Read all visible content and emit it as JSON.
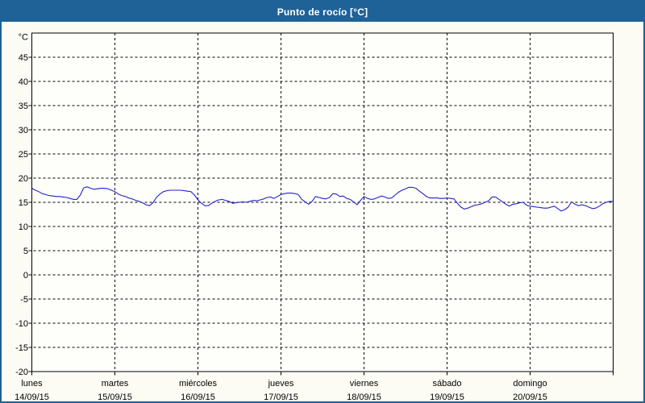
{
  "window": {
    "title": "Punto de rocío [°C]"
  },
  "colors": {
    "titlebar": "#1e6298",
    "window_border": "#1e6298",
    "background": "#fcfcf5",
    "plot_background": "#fefefb",
    "line": "#2222cc",
    "grid": "#000000",
    "text": "#000000"
  },
  "chart_data": {
    "type": "line",
    "title": "Punto de rocío [°C]",
    "legend": false,
    "grid": true,
    "y_axis": {
      "unit_label": "°C",
      "min": -20,
      "max": 50,
      "tick_step": 5,
      "tick_values": [
        45,
        40,
        35,
        30,
        25,
        20,
        15,
        10,
        5,
        0,
        -5,
        -10,
        -15,
        -20
      ],
      "grid_values": [
        45,
        40,
        35,
        30,
        25,
        20,
        15,
        10,
        5,
        0,
        -5,
        -10,
        -15
      ]
    },
    "x_axis": {
      "unit": "hours since lunes 00:00",
      "xlim_hours": [
        0,
        168
      ],
      "step_hours": 1,
      "day_boundary_gridlines": true,
      "days": [
        {
          "name": "lunes",
          "date": "14/09/15"
        },
        {
          "name": "martes",
          "date": "15/09/15"
        },
        {
          "name": "miércoles",
          "date": "16/09/15"
        },
        {
          "name": "jueves",
          "date": "17/09/15"
        },
        {
          "name": "viernes",
          "date": "18/09/15"
        },
        {
          "name": "sábado",
          "date": "19/09/15"
        },
        {
          "name": "domingo",
          "date": "20/09/15"
        }
      ]
    },
    "series": [
      {
        "name": "Punto de rocío",
        "unit": "°C",
        "color": "#2222cc",
        "x_start_hour": 0,
        "x_step_hours": 1,
        "values": [
          17.9,
          17.5,
          17.2,
          16.8,
          16.6,
          16.4,
          16.3,
          16.2,
          16.2,
          16.1,
          16.0,
          15.8,
          15.6,
          15.6,
          16.5,
          18.0,
          18.2,
          17.9,
          17.7,
          17.8,
          17.9,
          17.9,
          17.8,
          17.5,
          17.2,
          16.7,
          16.4,
          16.2,
          15.9,
          15.7,
          15.4,
          15.2,
          14.9,
          14.5,
          14.3,
          14.9,
          16.0,
          16.7,
          17.2,
          17.4,
          17.5,
          17.5,
          17.5,
          17.5,
          17.4,
          17.3,
          17.2,
          16.5,
          15.5,
          14.8,
          14.3,
          14.3,
          14.8,
          15.2,
          15.5,
          15.6,
          15.4,
          15.2,
          14.8,
          14.9,
          15.0,
          15.1,
          15.0,
          15.2,
          15.4,
          15.3,
          15.5,
          15.7,
          16.0,
          16.1,
          15.8,
          16.2,
          16.6,
          16.8,
          16.9,
          16.9,
          16.8,
          16.6,
          15.6,
          15.1,
          14.6,
          15.2,
          16.2,
          16.0,
          15.8,
          15.7,
          16.0,
          16.8,
          16.7,
          16.2,
          16.3,
          15.8,
          15.6,
          15.1,
          14.5,
          15.4,
          16.2,
          15.8,
          15.6,
          15.7,
          16.0,
          16.3,
          16.1,
          15.8,
          15.9,
          16.5,
          17.1,
          17.5,
          17.8,
          18.1,
          18.1,
          17.9,
          17.3,
          16.8,
          16.2,
          15.9,
          15.9,
          15.9,
          15.8,
          15.8,
          15.9,
          15.8,
          15.7,
          14.8,
          14.0,
          13.6,
          13.8,
          14.1,
          14.4,
          14.5,
          14.7,
          15.0,
          15.3,
          16.1,
          16.1,
          15.6,
          15.1,
          14.6,
          14.2,
          14.6,
          14.7,
          14.9,
          15.0,
          14.4,
          14.2,
          14.1,
          14.0,
          13.9,
          13.8,
          13.8,
          14.0,
          14.2,
          13.7,
          13.2,
          13.5,
          14.0,
          15.1,
          14.6,
          14.3,
          14.5,
          14.3,
          14.0,
          13.7,
          13.8,
          14.2,
          14.7,
          15.0,
          15.2,
          15.2
        ]
      }
    ]
  }
}
